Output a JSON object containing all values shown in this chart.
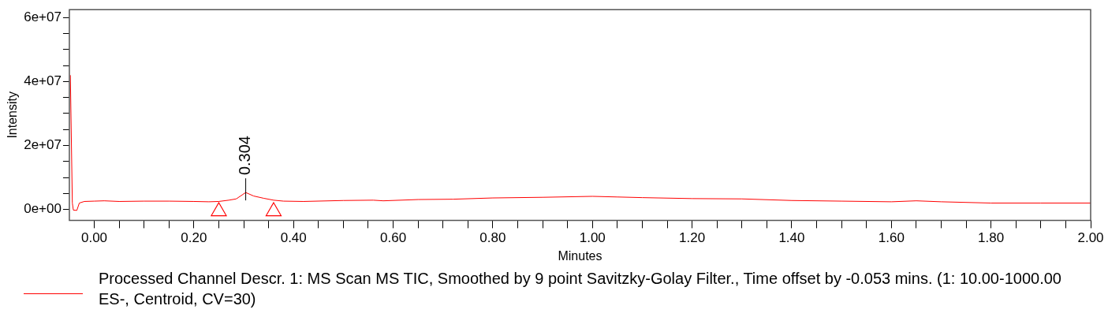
{
  "chart_data": {
    "type": "line",
    "xlabel": "Minutes",
    "ylabel": "Intensity",
    "xlim": [
      -0.05,
      2.0
    ],
    "ylim": [
      -3400000,
      62500000
    ],
    "xticks": [
      {
        "value": 0,
        "label": "0.00"
      },
      {
        "value": 0.05,
        "label": null
      },
      {
        "value": 0.1,
        "label": null
      },
      {
        "value": 0.15,
        "label": null
      },
      {
        "value": 0.2,
        "label": "0.20"
      },
      {
        "value": 0.25,
        "label": null
      },
      {
        "value": 0.3,
        "label": null
      },
      {
        "value": 0.35,
        "label": null
      },
      {
        "value": 0.4,
        "label": "0.40"
      },
      {
        "value": 0.45,
        "label": null
      },
      {
        "value": 0.5,
        "label": null
      },
      {
        "value": 0.55,
        "label": null
      },
      {
        "value": 0.6,
        "label": "0.60"
      },
      {
        "value": 0.65,
        "label": null
      },
      {
        "value": 0.7,
        "label": null
      },
      {
        "value": 0.75,
        "label": null
      },
      {
        "value": 0.8,
        "label": "0.80"
      },
      {
        "value": 0.85,
        "label": null
      },
      {
        "value": 0.9,
        "label": null
      },
      {
        "value": 0.95,
        "label": null
      },
      {
        "value": 1.0,
        "label": "1.00"
      },
      {
        "value": 1.05,
        "label": null
      },
      {
        "value": 1.1,
        "label": null
      },
      {
        "value": 1.15,
        "label": null
      },
      {
        "value": 1.2,
        "label": "1.20"
      },
      {
        "value": 1.25,
        "label": null
      },
      {
        "value": 1.3,
        "label": null
      },
      {
        "value": 1.35,
        "label": null
      },
      {
        "value": 1.4,
        "label": "1.40"
      },
      {
        "value": 1.45,
        "label": null
      },
      {
        "value": 1.5,
        "label": null
      },
      {
        "value": 1.55,
        "label": null
      },
      {
        "value": 1.6,
        "label": "1.60"
      },
      {
        "value": 1.65,
        "label": null
      },
      {
        "value": 1.7,
        "label": null
      },
      {
        "value": 1.75,
        "label": null
      },
      {
        "value": 1.8,
        "label": "1.80"
      },
      {
        "value": 1.85,
        "label": null
      },
      {
        "value": 1.9,
        "label": null
      },
      {
        "value": 1.95,
        "label": null
      },
      {
        "value": 2.0,
        "label": "2.00"
      }
    ],
    "yticks": [
      {
        "value": 0,
        "label": "0e+00"
      },
      {
        "value": 5000000,
        "label": null
      },
      {
        "value": 10000000,
        "label": null
      },
      {
        "value": 15000000,
        "label": null
      },
      {
        "value": 20000000,
        "label": "2e+07"
      },
      {
        "value": 25000000,
        "label": null
      },
      {
        "value": 30000000,
        "label": null
      },
      {
        "value": 35000000,
        "label": null
      },
      {
        "value": 40000000,
        "label": "4e+07"
      },
      {
        "value": 45000000,
        "label": null
      },
      {
        "value": 50000000,
        "label": null
      },
      {
        "value": 55000000,
        "label": null
      },
      {
        "value": 60000000,
        "label": "6e+07"
      }
    ],
    "grid": false,
    "legend": "bottom",
    "annotations": [
      {
        "text": "0.304",
        "x": 0.304,
        "y": 5300000
      }
    ],
    "series": [
      {
        "name": "Processed Channel Descr. 1: MS Scan MS TIC, Smoothed by 9 point Savitzky-Golay Filter., Time offset by  -0.053 mins. (1: 10.00-1000.00 ES-, Centroid, CV=30)",
        "color": "#ff0000",
        "marker": "none",
        "x": [
          -0.048,
          -0.044,
          -0.042,
          -0.035,
          -0.03,
          -0.02,
          0.0,
          0.02,
          0.05,
          0.1,
          0.15,
          0.2,
          0.23,
          0.25,
          0.27,
          0.285,
          0.304,
          0.32,
          0.34,
          0.36,
          0.38,
          0.42,
          0.5,
          0.56,
          0.58,
          0.65,
          0.72,
          0.8,
          0.9,
          1.0,
          1.05,
          1.1,
          1.2,
          1.3,
          1.4,
          1.5,
          1.6,
          1.65,
          1.7,
          1.8,
          1.9,
          2.0
        ],
        "values": [
          42000000,
          2000000,
          -200000,
          -300000,
          2000000,
          2500000,
          2600000,
          2700000,
          2500000,
          2600000,
          2600000,
          2500000,
          2400000,
          2500000,
          2900000,
          3300000,
          5300000,
          4200000,
          3500000,
          2900000,
          2600000,
          2500000,
          2800000,
          2900000,
          2700000,
          3100000,
          3200000,
          3600000,
          3800000,
          4100000,
          3900000,
          3700000,
          3400000,
          3300000,
          2800000,
          2600000,
          2400000,
          2700000,
          2400000,
          2000000,
          2000000,
          2000000
        ]
      },
      {
        "type": "scatter",
        "color": "#ff0000",
        "marker": "triangle",
        "x": [
          0.25,
          0.36
        ],
        "values": [
          -600000,
          -600000
        ]
      }
    ]
  }
}
